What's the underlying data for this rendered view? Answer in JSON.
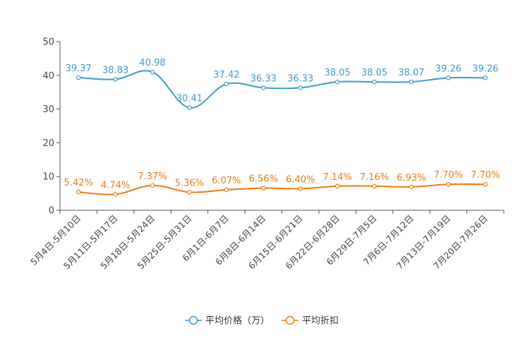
{
  "chart_data": {
    "type": "line",
    "title": "",
    "xlabel": "",
    "ylabel": "",
    "ylim": [
      0,
      50
    ],
    "yticks": [
      0,
      10,
      20,
      30,
      40,
      50
    ],
    "grid": false,
    "legend_position": "bottom-center",
    "categories": [
      "5月4日-5月10日",
      "5月11日-5月17日",
      "5月18日-5月24日",
      "5月25日-5月31日",
      "6月1日-6月7日",
      "6月8日-6月14日",
      "6月15日-6月21日",
      "6月22日-6月28日",
      "6月29日-7月5日",
      "7月6日-7月12日",
      "7月13日-7月19日",
      "7月20日-7月26日"
    ],
    "series": [
      {
        "name": "平均价格（万）",
        "color": "#3a9bd0",
        "values": [
          39.37,
          38.83,
          40.98,
          30.41,
          37.42,
          36.33,
          36.33,
          38.05,
          38.05,
          38.07,
          39.26,
          39.26
        ],
        "labels": [
          "39.37",
          "38.83",
          "40.98",
          "30.41",
          "37.42",
          "36.33",
          "36.33",
          "38.05",
          "38.05",
          "38.07",
          "39.26",
          "39.26"
        ]
      },
      {
        "name": "平均折扣",
        "color": "#f07a10",
        "values": [
          5.42,
          4.74,
          7.37,
          5.36,
          6.07,
          6.56,
          6.4,
          7.14,
          7.16,
          6.93,
          7.7,
          7.7
        ],
        "labels": [
          "5.42%",
          "4.74%",
          "7.37%",
          "5.36%",
          "6.07%",
          "6.56%",
          "6.40%",
          "7.14%",
          "7.16%",
          "6.93%",
          "7.70%",
          "7.70%"
        ]
      }
    ]
  }
}
